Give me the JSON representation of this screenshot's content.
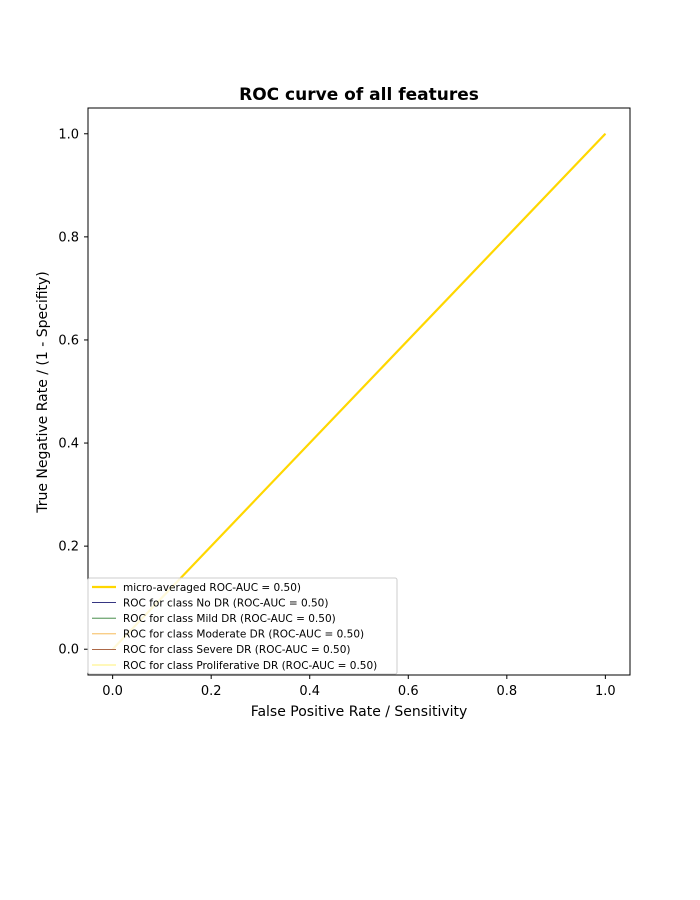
{
  "chart_data": {
    "type": "line",
    "title": "ROC curve of all features",
    "xlabel": "False Positive Rate / Sensitivity",
    "ylabel": "True Negative Rate / (1 - Specifity)",
    "xlim": [
      -0.05,
      1.05
    ],
    "ylim": [
      -0.05,
      1.05
    ],
    "xticks": [
      0.0,
      0.2,
      0.4,
      0.6,
      0.8,
      1.0
    ],
    "yticks": [
      0.0,
      0.2,
      0.4,
      0.6,
      0.8,
      1.0
    ],
    "xtick_labels": [
      "0.0",
      "0.2",
      "0.4",
      "0.6",
      "0.8",
      "1.0"
    ],
    "ytick_labels": [
      "0.0",
      "0.2",
      "0.4",
      "0.6",
      "0.8",
      "1.0"
    ],
    "grid": false,
    "legend_position": "lower-left",
    "series": [
      {
        "name": "micro-averaged ROC-AUC = 0.50)",
        "color": "#ffd700",
        "width": 2.2,
        "x": [
          0,
          1
        ],
        "y": [
          0,
          1
        ]
      },
      {
        "name": "ROC for class No DR (ROC-AUC = 0.50)",
        "color": "#191970",
        "width": 0.8,
        "x": [
          0,
          1
        ],
        "y": [
          0,
          1
        ]
      },
      {
        "name": "ROC for class Mild DR (ROC-AUC = 0.50)",
        "color": "#2e7d32",
        "width": 0.8,
        "x": [
          0,
          1
        ],
        "y": [
          0,
          1
        ]
      },
      {
        "name": "ROC for class Moderate DR (ROC-AUC = 0.50)",
        "color": "#f5b041",
        "width": 0.8,
        "x": [
          0,
          1
        ],
        "y": [
          0,
          1
        ]
      },
      {
        "name": "ROC for class Severe DR (ROC-AUC = 0.50)",
        "color": "#a0522d",
        "width": 0.8,
        "x": [
          0,
          1
        ],
        "y": [
          0,
          1
        ]
      },
      {
        "name": "ROC for class Proliferative DR (ROC-AUC = 0.50)",
        "color": "#fff176",
        "width": 0.8,
        "x": [
          0,
          1
        ],
        "y": [
          0,
          1
        ]
      }
    ]
  }
}
